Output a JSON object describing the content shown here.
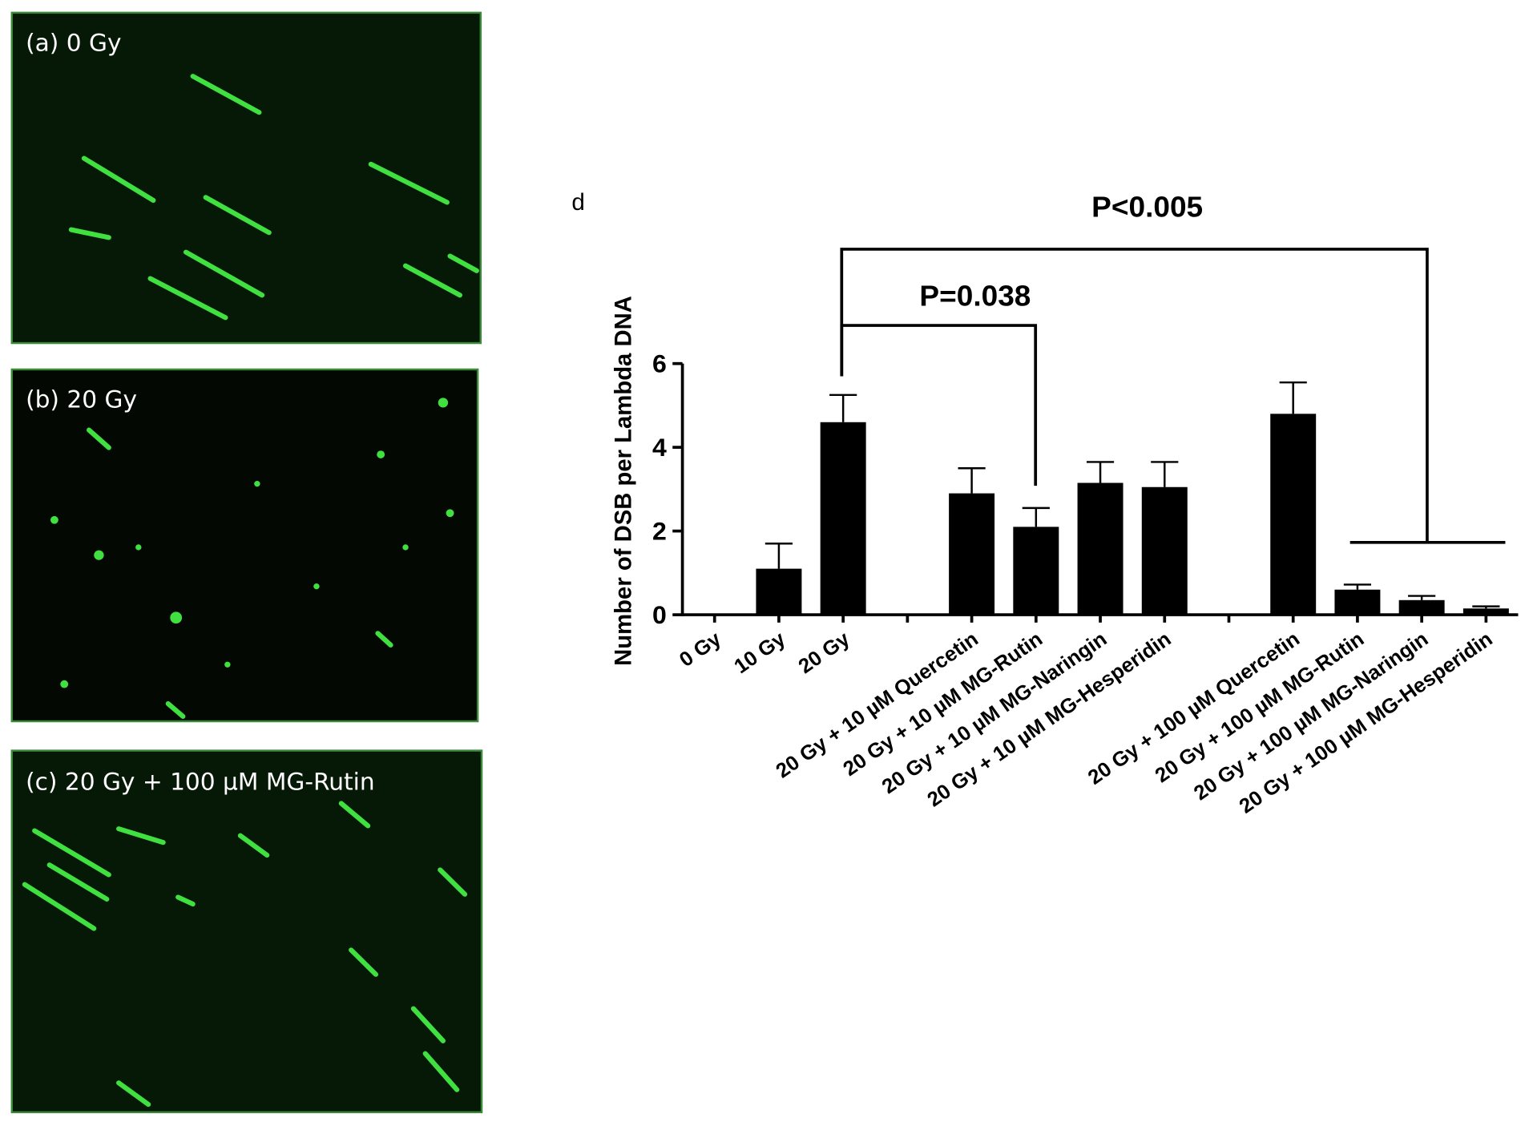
{
  "panels": [
    {
      "label": "(a) 0 Gy"
    },
    {
      "label": "(b) 20 Gy"
    },
    {
      "label": "(c) 20 Gy + 100 µM MG-Rutin"
    }
  ],
  "chart_data": {
    "type": "bar",
    "panel_label": "d",
    "ylabel": "Number of DSB per Lambda DNA",
    "annotations": [
      "P<0.005",
      "P=0.038"
    ],
    "categories": [
      "0 Gy",
      "10 Gy",
      "20 Gy",
      null,
      "20 Gy + 10 µM Quercetin",
      "20 Gy + 10 µM MG-Rutin",
      "20 Gy + 10 µM MG-Naringin",
      "20 Gy + 10 µM MG-Hesperidin",
      null,
      "20 Gy + 100 µM Quercetin",
      "20 Gy + 100 µM MG-Rutin",
      "20 Gy + 100 µM MG-Naringin",
      "20 Gy + 100 µM MG-Hesperidin"
    ],
    "values": [
      0,
      1.1,
      4.6,
      null,
      2.9,
      2.1,
      3.15,
      3.05,
      null,
      4.8,
      0.6,
      0.35,
      0.15
    ],
    "errors": [
      0,
      0.6,
      0.65,
      null,
      0.6,
      0.45,
      0.5,
      0.6,
      null,
      0.75,
      0.12,
      0.1,
      0.05
    ],
    "color": "#000000",
    "ylim": [
      0,
      6
    ],
    "yticks": [
      0,
      2,
      4,
      6
    ]
  }
}
